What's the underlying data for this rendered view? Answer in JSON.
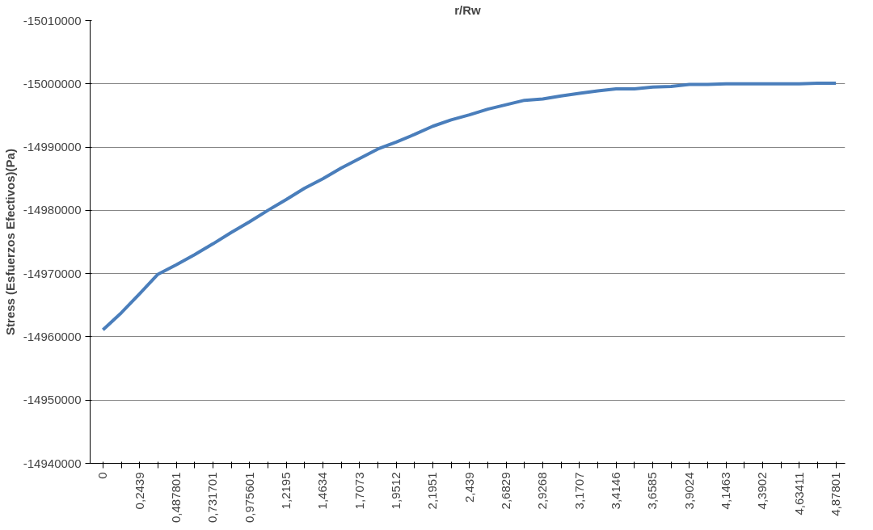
{
  "chart_data": {
    "type": "line",
    "xlabel": "r/Rw",
    "ylabel": "Stress (Esfuerzos Efectivos)(Pa)",
    "categories": [
      "0",
      null,
      "0,2439",
      null,
      "0,487801",
      null,
      "0,731701",
      null,
      "0,975601",
      null,
      "1,2195",
      null,
      "1,4634",
      null,
      "1,7073",
      null,
      "1,9512",
      null,
      "2,1951",
      null,
      "2,439",
      null,
      "2,6829",
      null,
      "2,9268",
      null,
      "3,1707",
      null,
      "3,4146",
      null,
      "3,6585",
      null,
      "3,9024",
      null,
      "4,1463",
      null,
      "4,3902",
      null,
      "4,63411",
      null,
      "4,87801"
    ],
    "series": [
      {
        "color": "#4a7ebb",
        "values": [
          -14961100,
          -14963800,
          -14966800,
          -14969900,
          -14971400,
          -14973000,
          -14974700,
          -14976500,
          -14978200,
          -14980000,
          -14981700,
          -14983500,
          -14985000,
          -14986700,
          -14988200,
          -14989700,
          -14990800,
          -14992000,
          -14993300,
          -14994300,
          -14995100,
          -14996000,
          -14996700,
          -14997400,
          -14997600,
          -14998100,
          -14998500,
          -14998900,
          -14999200,
          -14999200,
          -14999500,
          -14999600,
          -14999900,
          -14999900,
          -15000000,
          -15000000,
          -15000000,
          -15000000,
          -15000000,
          -15000100,
          -15000100
        ]
      }
    ],
    "ylim": [
      -14940000,
      -15010000
    ],
    "yticks": [
      -14940000,
      -14950000,
      -14960000,
      -14970000,
      -14980000,
      -14990000,
      -15000000,
      -15010000
    ],
    "grid": "y",
    "marker": "none",
    "line_style": "solid"
  }
}
